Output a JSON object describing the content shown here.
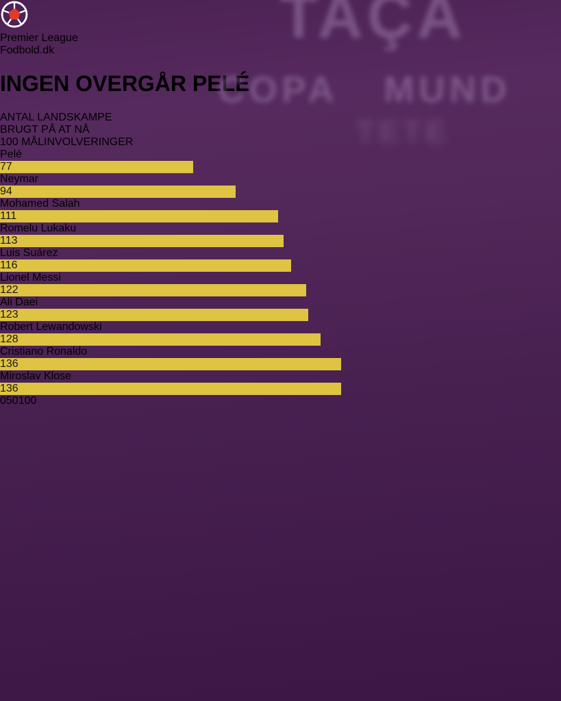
{
  "logo": {
    "line1": "Premier League",
    "line2_main": "Fodbold",
    "line2_suffix": ".dk",
    "colors": {
      "bg": "#3A0D42",
      "text": "#FFFFFF",
      "accent_red": "#E23A2E"
    }
  },
  "title": "INGEN OVERGÅR PELÉ",
  "subtitle_lines": [
    "ANTAL LANDSKAMPE",
    "BRUGT PÅ AT NÅ",
    "100 MÅLINVOLVERINGER"
  ],
  "background": {
    "words": [
      "TAÇA",
      "COPA",
      "MUND",
      "TETE"
    ]
  },
  "colors": {
    "poster_purple": "#4C2154",
    "title_green": "#8DD95E",
    "bar_yellow": "#DFC343",
    "value_text": "#181818",
    "label_text": "#FFFFFF"
  },
  "chart_data": {
    "type": "bar",
    "orientation": "horizontal",
    "title": "Antal landskampe brugt på at nå 100 målinvolveringer",
    "categories": [
      "Pelé",
      "Neymar",
      "Mohamed Salah",
      "Romelu Lukaku",
      "Luis Suárez",
      "Lionel Messi",
      "Ali Daei",
      "Robert Lewandowski",
      "Cristiano Ronaldo",
      "Miroslav Klose"
    ],
    "values": [
      77,
      94,
      111,
      113,
      116,
      122,
      123,
      128,
      136,
      136
    ],
    "xticks": [
      0,
      50,
      100
    ],
    "xlim": [
      0,
      140
    ],
    "bar_color": "#DFC343",
    "value_label_color": "#181818",
    "grid": false,
    "legend": false
  }
}
